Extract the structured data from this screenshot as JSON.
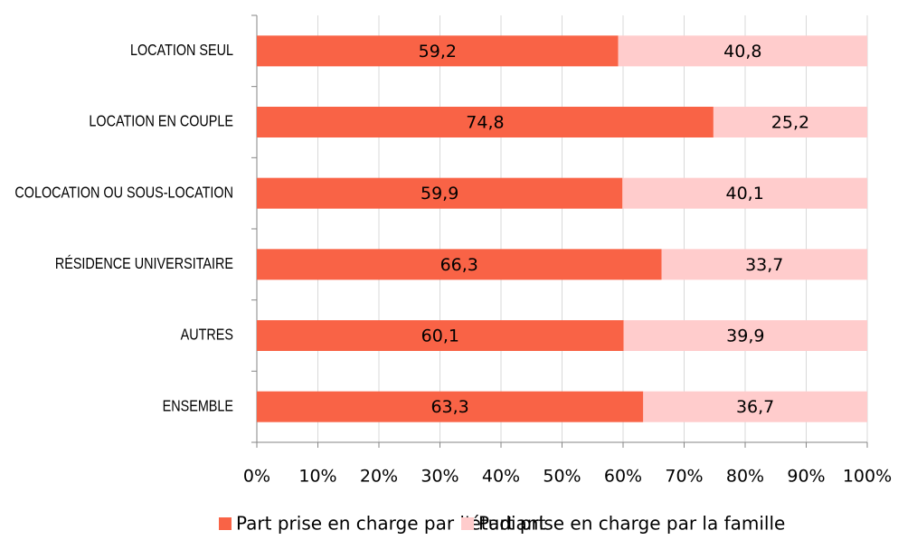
{
  "chart_data": {
    "type": "stacked-bar-horizontal",
    "categories": [
      "LOCATION SEUL",
      "LOCATION EN COUPLE",
      "COLOCATION OU SOUS-LOCATION",
      "RÉSIDENCE UNIVERSITAIRE",
      "AUTRES",
      "ENSEMBLE"
    ],
    "series": [
      {
        "name": "Part prise en charge par l'étudiant",
        "color": "#f96346",
        "values": [
          59.2,
          74.8,
          59.9,
          66.3,
          60.1,
          63.3
        ],
        "value_labels": [
          "59,2",
          "74,8",
          "59,9",
          "66,3",
          "60,1",
          "63,3"
        ]
      },
      {
        "name": "Part prise en charge par la famille",
        "color": "#ffcccc",
        "values": [
          40.8,
          25.2,
          40.1,
          33.7,
          39.9,
          36.7
        ],
        "value_labels": [
          "40,8",
          "25,2",
          "40,1",
          "33,7",
          "39,9",
          "36,7"
        ]
      }
    ],
    "xlim": [
      0,
      100
    ],
    "xticks": [
      {
        "value": 0,
        "label": "0%"
      },
      {
        "value": 10,
        "label": "10%"
      },
      {
        "value": 20,
        "label": "20%"
      },
      {
        "value": 30,
        "label": "30%"
      },
      {
        "value": 40,
        "label": "40%"
      },
      {
        "value": 50,
        "label": "50%"
      },
      {
        "value": 60,
        "label": "60%"
      },
      {
        "value": 70,
        "label": "70%"
      },
      {
        "value": 80,
        "label": "80%"
      },
      {
        "value": 90,
        "label": "90%"
      },
      {
        "value": 100,
        "label": "100%"
      }
    ],
    "grid": true,
    "legend": "bottom"
  }
}
